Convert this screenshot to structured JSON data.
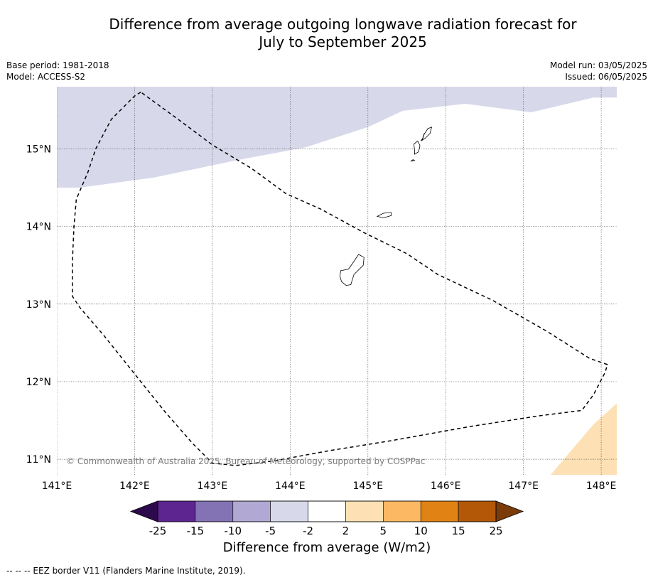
{
  "title_line1": "Difference from average outgoing longwave radiation forecast for",
  "title_line2": "July to September 2025",
  "meta": {
    "base_period": "Base period: 1981-2018",
    "model": "Model: ACCESS-S2",
    "model_run": "Model run: 03/05/2025",
    "issued": "Issued: 06/05/2025"
  },
  "map": {
    "lon_range": [
      141.0,
      148.2
    ],
    "lat_range": [
      10.8,
      15.8
    ],
    "lon_ticks": [
      141,
      142,
      143,
      144,
      145,
      146,
      147,
      148
    ],
    "lon_tick_labels": [
      "141°E",
      "142°E",
      "143°E",
      "144°E",
      "145°E",
      "146°E",
      "147°E",
      "148°E"
    ],
    "lat_ticks": [
      11,
      12,
      13,
      14,
      15
    ],
    "lat_tick_labels": [
      "11°N",
      "12°N",
      "13°N",
      "14°N",
      "15°N"
    ],
    "grid": true,
    "copyright": "© Commonwealth of Australia 2025, Bureau of Meteorology, supported by COSPPac",
    "regions": [
      {
        "name": "anomaly -5 to -2",
        "color": "#d7d9ea",
        "boundary": [
          [
            141.0,
            15.8
          ],
          [
            148.2,
            15.8
          ],
          [
            148.2,
            15.66
          ],
          [
            147.9,
            15.66
          ],
          [
            147.1,
            15.47
          ],
          [
            146.25,
            15.58
          ],
          [
            145.45,
            15.49
          ],
          [
            145.0,
            15.28
          ],
          [
            144.2,
            15.02
          ],
          [
            143.3,
            14.85
          ],
          [
            142.25,
            14.63
          ],
          [
            141.3,
            14.5
          ],
          [
            141.0,
            14.5
          ]
        ]
      },
      {
        "name": "anomaly 2 to 5",
        "color": "#fde0b3",
        "boundary": [
          [
            147.35,
            10.8
          ],
          [
            147.9,
            11.45
          ],
          [
            148.0,
            11.54
          ],
          [
            148.2,
            11.72
          ],
          [
            148.2,
            10.8
          ]
        ]
      }
    ],
    "islands": [
      {
        "name": "Guam",
        "boundary": [
          [
            144.88,
            13.64
          ],
          [
            144.95,
            13.6
          ],
          [
            144.94,
            13.5
          ],
          [
            144.86,
            13.42
          ],
          [
            144.82,
            13.38
          ],
          [
            144.78,
            13.25
          ],
          [
            144.72,
            13.24
          ],
          [
            144.66,
            13.29
          ],
          [
            144.64,
            13.36
          ],
          [
            144.65,
            13.43
          ],
          [
            144.75,
            13.45
          ],
          [
            144.8,
            13.52
          ]
        ]
      },
      {
        "name": "Rota",
        "boundary": [
          [
            145.12,
            14.13
          ],
          [
            145.2,
            14.17
          ],
          [
            145.3,
            14.18
          ],
          [
            145.3,
            14.14
          ],
          [
            145.2,
            14.11
          ]
        ]
      },
      {
        "name": "Aguijan",
        "boundary": [
          [
            145.55,
            14.84
          ],
          [
            145.58,
            14.86
          ],
          [
            145.6,
            14.85
          ]
        ]
      },
      {
        "name": "Tinian",
        "boundary": [
          [
            145.6,
            14.93
          ],
          [
            145.65,
            14.96
          ],
          [
            145.67,
            15.04
          ],
          [
            145.64,
            15.1
          ],
          [
            145.59,
            15.06
          ],
          [
            145.6,
            14.99
          ]
        ]
      },
      {
        "name": "Saigon",
        "boundary": [
          [
            145.68,
            15.1
          ],
          [
            145.73,
            15.17
          ],
          [
            145.8,
            15.26
          ],
          [
            145.82,
            15.28
          ],
          [
            145.78,
            15.24
          ],
          [
            145.72,
            15.19
          ],
          [
            145.7,
            15.12
          ]
        ]
      },
      {
        "name": "Saipan",
        "boundary": [
          [
            145.7,
            15.11
          ],
          [
            145.72,
            15.18
          ],
          [
            145.77,
            15.26
          ],
          [
            145.82,
            15.28
          ],
          [
            145.8,
            15.2
          ],
          [
            145.74,
            15.14
          ]
        ]
      }
    ],
    "eez_border": [
      [
        142.08,
        15.73
      ],
      [
        142.0,
        15.68
      ],
      [
        141.7,
        15.38
      ],
      [
        141.5,
        15.0
      ],
      [
        141.4,
        14.7
      ],
      [
        141.25,
        14.35
      ],
      [
        141.22,
        14.0
      ],
      [
        141.2,
        13.55
      ],
      [
        141.2,
        13.1
      ],
      [
        141.3,
        12.95
      ],
      [
        141.6,
        12.6
      ],
      [
        142.0,
        12.1
      ],
      [
        142.4,
        11.6
      ],
      [
        142.75,
        11.2
      ],
      [
        143.0,
        10.95
      ],
      [
        143.3,
        10.92
      ],
      [
        143.8,
        10.98
      ],
      [
        144.5,
        11.11
      ],
      [
        145.3,
        11.24
      ],
      [
        146.3,
        11.42
      ],
      [
        147.2,
        11.56
      ],
      [
        147.75,
        11.63
      ],
      [
        147.9,
        11.83
      ],
      [
        148.05,
        12.12
      ],
      [
        148.08,
        12.22
      ],
      [
        147.85,
        12.3
      ],
      [
        147.3,
        12.65
      ],
      [
        146.6,
        13.05
      ],
      [
        145.9,
        13.38
      ],
      [
        145.5,
        13.65
      ],
      [
        144.95,
        13.92
      ],
      [
        144.4,
        14.22
      ],
      [
        143.95,
        14.42
      ],
      [
        143.5,
        14.75
      ],
      [
        143.0,
        15.05
      ],
      [
        142.6,
        15.35
      ],
      [
        142.08,
        15.73
      ]
    ]
  },
  "colorbar": {
    "title": "Difference from average (W/m2)",
    "tick_labels": [
      "-25",
      "-15",
      "-10",
      "-5",
      "-2",
      "2",
      "5",
      "10",
      "15",
      "25"
    ],
    "under_color": "#2d0a4b",
    "over_color": "#7b3c0a",
    "colors": [
      "#5c2590",
      "#8473b4",
      "#b1a9d3",
      "#d7d9ea",
      "#ffffff",
      "#fde0b3",
      "#fdb863",
      "#e08214",
      "#b35806"
    ]
  },
  "footnote": "--  --  -- EEZ border V11 (Flanders Marine Institute, 2019)."
}
